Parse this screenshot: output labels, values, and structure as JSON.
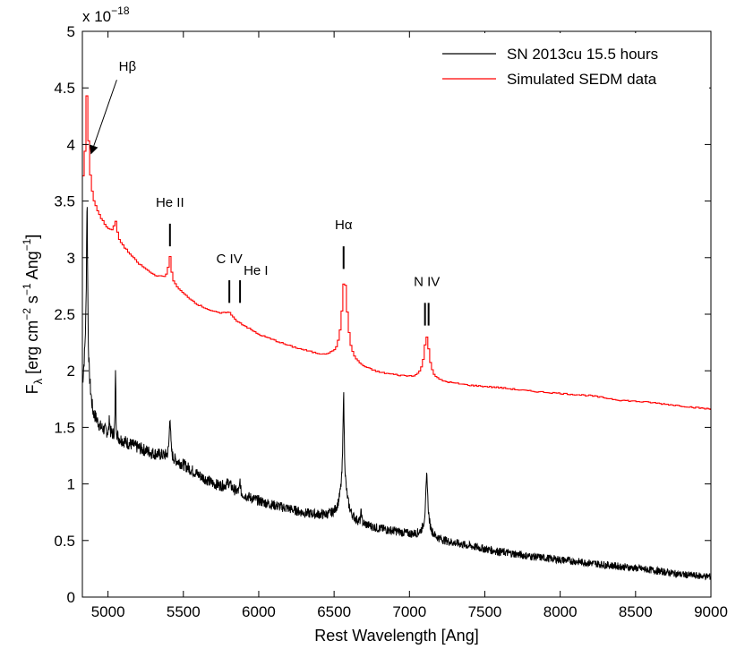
{
  "chart_data": {
    "type": "line",
    "xlabel": "Rest Wavelength [Ang]",
    "ylabel_main": "F",
    "ylabel_sub": "λ",
    "ylabel_rest": " [erg cm",
    "ylabel_exp1": "−2",
    "ylabel_mid1": " s",
    "ylabel_exp2": "−1",
    "ylabel_mid2": " Ang",
    "ylabel_exp3": "−1",
    "ylabel_end": "]",
    "exponent_base": "x 10",
    "exponent_power": "−18",
    "xlim": [
      4830,
      9000
    ],
    "ylim": [
      0,
      5
    ],
    "xticks": [
      5000,
      5500,
      6000,
      6500,
      7000,
      7500,
      8000,
      8500,
      9000
    ],
    "xtick_labels": [
      "5000",
      "5500",
      "6000",
      "6500",
      "7000",
      "7500",
      "8000",
      "8500",
      "9000"
    ],
    "yticks": [
      0,
      0.5,
      1,
      1.5,
      2,
      2.5,
      3,
      3.5,
      4,
      4.5,
      5
    ],
    "ytick_labels": [
      "0",
      "0.5",
      "1",
      "1.5",
      "2",
      "2.5",
      "3",
      "3.5",
      "4",
      "4.5",
      "5"
    ],
    "legend_position": "top-right",
    "grid": false,
    "series": [
      {
        "name": "SN 2013cu 15.5 hours",
        "color": "#000000",
        "style": "noisy",
        "continuum": [
          [
            4830,
            1.85
          ],
          [
            4850,
            2.1
          ],
          [
            4870,
            1.9
          ],
          [
            4900,
            1.62
          ],
          [
            4950,
            1.5
          ],
          [
            5000,
            1.45
          ],
          [
            5100,
            1.38
          ],
          [
            5200,
            1.32
          ],
          [
            5300,
            1.27
          ],
          [
            5400,
            1.24
          ],
          [
            5500,
            1.17
          ],
          [
            5600,
            1.08
          ],
          [
            5700,
            1.0
          ],
          [
            5800,
            0.96
          ],
          [
            5900,
            0.9
          ],
          [
            6000,
            0.85
          ],
          [
            6100,
            0.81
          ],
          [
            6200,
            0.78
          ],
          [
            6300,
            0.74
          ],
          [
            6400,
            0.72
          ],
          [
            6500,
            0.7
          ],
          [
            6600,
            0.66
          ],
          [
            6700,
            0.63
          ],
          [
            6800,
            0.6
          ],
          [
            6900,
            0.58
          ],
          [
            7000,
            0.55
          ],
          [
            7200,
            0.5
          ],
          [
            7400,
            0.45
          ],
          [
            7600,
            0.4
          ],
          [
            7800,
            0.36
          ],
          [
            8000,
            0.33
          ],
          [
            8200,
            0.3
          ],
          [
            8400,
            0.27
          ],
          [
            8600,
            0.24
          ],
          [
            8800,
            0.2
          ],
          [
            9000,
            0.18
          ]
        ],
        "lines": [
          {
            "c": 4861,
            "amp": 1.5,
            "w": 5
          },
          {
            "c": 5010,
            "amp": 0.15,
            "w": 3
          },
          {
            "c": 5050,
            "amp": 0.62,
            "w": 2.5
          },
          {
            "c": 5411,
            "amp": 0.38,
            "w": 5
          },
          {
            "c": 5800,
            "amp": 0.05,
            "w": 20
          },
          {
            "c": 5876,
            "amp": 0.12,
            "w": 3
          },
          {
            "c": 6563,
            "amp": 0.8,
            "w": 5
          },
          {
            "c": 6563,
            "amp": 0.33,
            "w": 30
          },
          {
            "c": 6680,
            "amp": 0.12,
            "w": 3
          },
          {
            "c": 7115,
            "amp": 0.45,
            "w": 8
          },
          {
            "c": 7115,
            "amp": 0.1,
            "w": 35
          }
        ]
      },
      {
        "name": "Simulated SEDM data",
        "color": "#ff0000",
        "style": "step",
        "continuum": [
          [
            4830,
            3.6
          ],
          [
            4860,
            3.8
          ],
          [
            4900,
            3.5
          ],
          [
            4950,
            3.35
          ],
          [
            5000,
            3.25
          ],
          [
            5100,
            3.1
          ],
          [
            5200,
            2.95
          ],
          [
            5300,
            2.85
          ],
          [
            5400,
            2.8
          ],
          [
            5500,
            2.68
          ],
          [
            5600,
            2.58
          ],
          [
            5700,
            2.52
          ],
          [
            5800,
            2.47
          ],
          [
            5900,
            2.4
          ],
          [
            6000,
            2.32
          ],
          [
            6100,
            2.27
          ],
          [
            6200,
            2.22
          ],
          [
            6300,
            2.18
          ],
          [
            6400,
            2.14
          ],
          [
            6500,
            2.12
          ],
          [
            6600,
            2.08
          ],
          [
            6700,
            2.02
          ],
          [
            6800,
            1.98
          ],
          [
            6900,
            1.96
          ],
          [
            7000,
            1.94
          ],
          [
            7200,
            1.9
          ],
          [
            7400,
            1.87
          ],
          [
            7600,
            1.85
          ],
          [
            7800,
            1.82
          ],
          [
            8000,
            1.8
          ],
          [
            8200,
            1.78
          ],
          [
            8400,
            1.74
          ],
          [
            8600,
            1.72
          ],
          [
            8800,
            1.69
          ],
          [
            9000,
            1.66
          ]
        ],
        "lines": [
          {
            "c": 4862,
            "amp": 0.65,
            "w": 10
          },
          {
            "c": 5050,
            "amp": 0.15,
            "w": 12
          },
          {
            "c": 5411,
            "amp": 0.22,
            "w": 12
          },
          {
            "c": 5800,
            "amp": 0.05,
            "w": 30
          },
          {
            "c": 6570,
            "amp": 0.72,
            "w": 22
          },
          {
            "c": 7115,
            "amp": 0.38,
            "w": 22
          }
        ]
      }
    ],
    "annotations": [
      {
        "label": "Hβ",
        "x": 4888,
        "y": 3.92,
        "tx": 5070,
        "ty": 4.65,
        "arrow": true
      },
      {
        "label": "He II",
        "x": 5411,
        "ytop": 3.3,
        "ybot": 3.1,
        "ticks": 1,
        "ty": 3.45
      },
      {
        "label": "C IV",
        "x": 5805,
        "ytop": 2.8,
        "ybot": 2.6,
        "ticks": 1,
        "ty": 2.95
      },
      {
        "label": "He I",
        "x": 5876,
        "ytop": 2.8,
        "ybot": 2.6,
        "ticks": 1,
        "ty": 2.85,
        "tdx": 18
      },
      {
        "label": "Hα",
        "x": 6563,
        "ytop": 3.1,
        "ybot": 2.9,
        "ticks": 1,
        "ty": 3.25
      },
      {
        "label": "N IV",
        "x": 7115,
        "ytop": 2.6,
        "ybot": 2.4,
        "ticks": 2,
        "ty": 2.75
      }
    ]
  }
}
